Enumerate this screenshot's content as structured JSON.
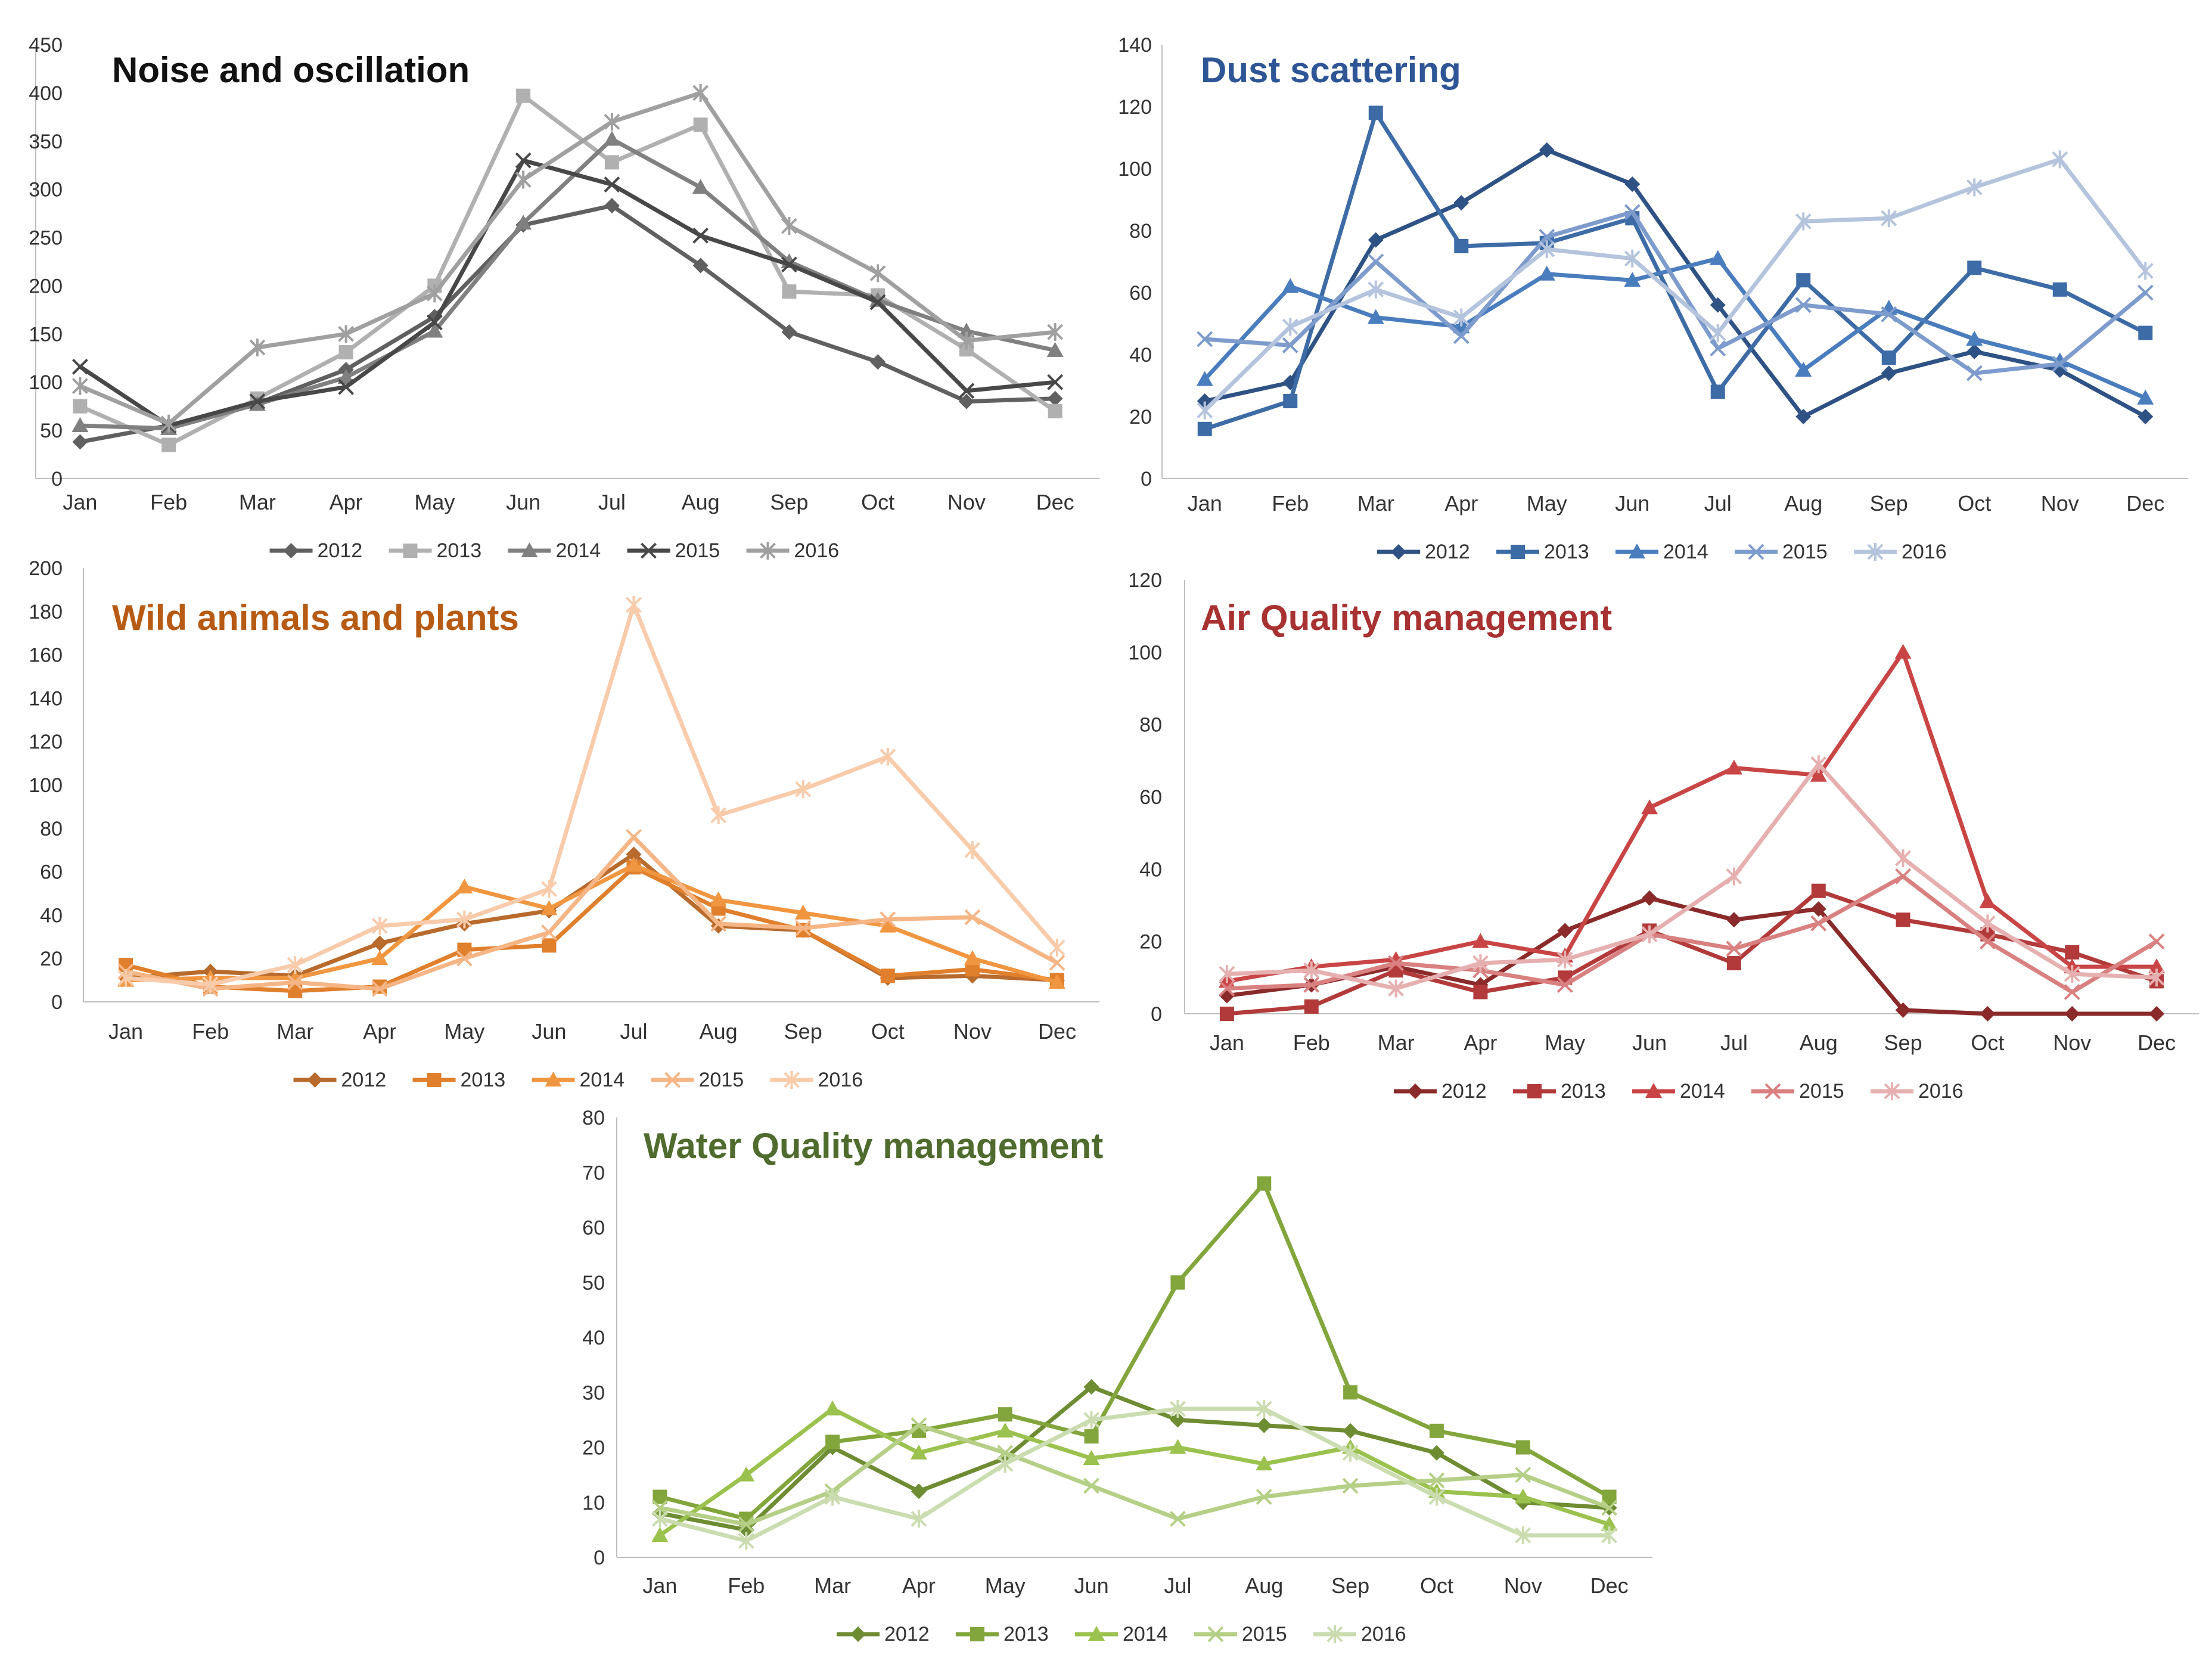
{
  "chart_data": [
    {
      "type": "line",
      "title": "Noise and oscillation",
      "title_color": "#111111",
      "categories": [
        "Jan",
        "Feb",
        "Mar",
        "Apr",
        "May",
        "Jun",
        "Jul",
        "Aug",
        "Sep",
        "Oct",
        "Nov",
        "Dec"
      ],
      "ylim": [
        0,
        450
      ],
      "yticks": [
        0,
        50,
        100,
        150,
        200,
        250,
        300,
        350,
        400,
        450
      ],
      "xlabel": "",
      "ylabel": "",
      "legend": "bottom",
      "series": [
        {
          "name": "2012",
          "marker": "diamond",
          "color": "#606060",
          "values": [
            38,
            55,
            78,
            113,
            168,
            263,
            283,
            221,
            152,
            121,
            80,
            83
          ]
        },
        {
          "name": "2013",
          "marker": "square",
          "color": "#b0b0b0",
          "values": [
            75,
            35,
            83,
            131,
            200,
            397,
            328,
            367,
            194,
            190,
            134,
            70
          ]
        },
        {
          "name": "2014",
          "marker": "triangle",
          "color": "#808080",
          "values": [
            55,
            52,
            77,
            105,
            153,
            265,
            352,
            302,
            225,
            185,
            153,
            133
          ]
        },
        {
          "name": "2015",
          "marker": "x",
          "color": "#484848",
          "values": [
            116,
            55,
            80,
            95,
            162,
            330,
            305,
            252,
            222,
            183,
            91,
            100
          ]
        },
        {
          "name": "2016",
          "marker": "star",
          "color": "#a0a0a0",
          "values": [
            96,
            57,
            136,
            150,
            192,
            310,
            370,
            400,
            262,
            213,
            143,
            152
          ]
        }
      ]
    },
    {
      "type": "line",
      "title": "Dust scattering",
      "title_color": "#2e5596",
      "categories": [
        "Jan",
        "Feb",
        "Mar",
        "Apr",
        "May",
        "Jun",
        "Jul",
        "Aug",
        "Sep",
        "Oct",
        "Nov",
        "Dec"
      ],
      "ylim": [
        0,
        140
      ],
      "yticks": [
        0,
        20,
        40,
        60,
        80,
        100,
        120,
        140
      ],
      "xlabel": "",
      "ylabel": "",
      "legend": "bottom",
      "series": [
        {
          "name": "2012",
          "marker": "diamond",
          "color": "#2f5285",
          "values": [
            25,
            31,
            77,
            89,
            106,
            95,
            56,
            20,
            34,
            41,
            35,
            20
          ]
        },
        {
          "name": "2013",
          "marker": "square",
          "color": "#3d6ba6",
          "values": [
            16,
            25,
            118,
            75,
            76,
            84,
            28,
            64,
            39,
            68,
            61,
            47
          ]
        },
        {
          "name": "2014",
          "marker": "triangle",
          "color": "#4a7dbd",
          "values": [
            32,
            62,
            52,
            49,
            66,
            64,
            71,
            35,
            55,
            45,
            38,
            26
          ]
        },
        {
          "name": "2015",
          "marker": "x",
          "color": "#7d9bcc",
          "values": [
            45,
            43,
            70,
            46,
            78,
            86,
            42,
            56,
            53,
            34,
            37,
            60
          ]
        },
        {
          "name": "2016",
          "marker": "star",
          "color": "#b5c4dd",
          "values": [
            22,
            49,
            61,
            52,
            74,
            71,
            47,
            83,
            84,
            94,
            103,
            67
          ]
        }
      ]
    },
    {
      "type": "line",
      "title": "Wild animals and plants",
      "title_color": "#b75b14",
      "categories": [
        "Jan",
        "Feb",
        "Mar",
        "Apr",
        "May",
        "Jun",
        "Jul",
        "Aug",
        "Sep",
        "Oct",
        "Nov",
        "Dec"
      ],
      "ylim": [
        0,
        200
      ],
      "yticks": [
        0,
        20,
        40,
        60,
        80,
        100,
        120,
        140,
        160,
        180,
        200
      ],
      "xlabel": "",
      "ylabel": "",
      "legend": "bottom",
      "series": [
        {
          "name": "2012",
          "marker": "diamond",
          "color": "#b86b2c",
          "values": [
            11,
            14,
            12,
            27,
            36,
            42,
            68,
            35,
            33,
            11,
            12,
            10
          ]
        },
        {
          "name": "2013",
          "marker": "square",
          "color": "#e07f2c",
          "values": [
            17,
            7,
            5,
            7,
            24,
            26,
            62,
            43,
            33,
            12,
            15,
            10
          ]
        },
        {
          "name": "2014",
          "marker": "triangle",
          "color": "#f19640",
          "values": [
            10,
            11,
            11,
            20,
            53,
            43,
            63,
            47,
            41,
            35,
            20,
            9
          ]
        },
        {
          "name": "2015",
          "marker": "x",
          "color": "#f5b585",
          "values": [
            14,
            6,
            9,
            6,
            20,
            32,
            76,
            36,
            34,
            38,
            39,
            18
          ]
        },
        {
          "name": "2016",
          "marker": "star",
          "color": "#f8cbab",
          "values": [
            11,
            8,
            17,
            35,
            38,
            52,
            183,
            86,
            98,
            113,
            70,
            25
          ]
        }
      ]
    },
    {
      "type": "line",
      "title": "Air Quality management",
      "title_color": "#a83232",
      "categories": [
        "Jan",
        "Feb",
        "Mar",
        "Apr",
        "May",
        "Jun",
        "Jul",
        "Aug",
        "Sep",
        "Oct",
        "Nov",
        "Dec"
      ],
      "ylim": [
        0,
        120
      ],
      "yticks": [
        0,
        20,
        40,
        60,
        80,
        100,
        120
      ],
      "xlabel": "",
      "ylabel": "",
      "legend": "bottom",
      "series": [
        {
          "name": "2012",
          "marker": "diamond",
          "color": "#8b2a2a",
          "values": [
            5,
            8,
            13,
            8,
            23,
            32,
            26,
            29,
            1,
            0,
            0,
            0
          ]
        },
        {
          "name": "2013",
          "marker": "square",
          "color": "#b23a3a",
          "values": [
            0,
            2,
            12,
            6,
            10,
            23,
            14,
            34,
            26,
            22,
            17,
            9
          ]
        },
        {
          "name": "2014",
          "marker": "triangle",
          "color": "#c94545",
          "values": [
            9,
            13,
            15,
            20,
            16,
            57,
            68,
            66,
            100,
            31,
            13,
            13
          ]
        },
        {
          "name": "2015",
          "marker": "x",
          "color": "#d98080",
          "values": [
            7,
            8,
            14,
            12,
            8,
            22,
            18,
            25,
            38,
            20,
            6,
            20
          ]
        },
        {
          "name": "2016",
          "marker": "star",
          "color": "#e6b0b0",
          "values": [
            11,
            12,
            7,
            14,
            15,
            22,
            38,
            69,
            43,
            25,
            11,
            10
          ]
        }
      ]
    },
    {
      "type": "line",
      "title": "Water Quality management",
      "title_color": "#4f6b2d",
      "categories": [
        "Jan",
        "Feb",
        "Mar",
        "Apr",
        "May",
        "Jun",
        "Jul",
        "Aug",
        "Sep",
        "Oct",
        "Nov",
        "Dec"
      ],
      "ylim": [
        0,
        80
      ],
      "yticks": [
        0,
        10,
        20,
        30,
        40,
        50,
        60,
        70,
        80
      ],
      "xlabel": "",
      "ylabel": "",
      "legend": "bottom",
      "series": [
        {
          "name": "2012",
          "marker": "diamond",
          "color": "#6e8c32",
          "values": [
            8,
            5,
            20,
            12,
            18,
            31,
            25,
            24,
            23,
            19,
            10,
            9
          ]
        },
        {
          "name": "2013",
          "marker": "square",
          "color": "#82a53c",
          "values": [
            11,
            7,
            21,
            23,
            26,
            22,
            50,
            68,
            30,
            23,
            20,
            11
          ]
        },
        {
          "name": "2014",
          "marker": "triangle",
          "color": "#9bc24e",
          "values": [
            4,
            15,
            27,
            19,
            23,
            18,
            20,
            17,
            20,
            12,
            11,
            6
          ]
        },
        {
          "name": "2015",
          "marker": "x",
          "color": "#b5cf86",
          "values": [
            9,
            6,
            12,
            24,
            19,
            13,
            7,
            11,
            13,
            14,
            15,
            9
          ]
        },
        {
          "name": "2016",
          "marker": "star",
          "color": "#cbddb0",
          "values": [
            7,
            3,
            11,
            7,
            17,
            25,
            27,
            27,
            19,
            11,
            4,
            4
          ]
        }
      ]
    }
  ]
}
